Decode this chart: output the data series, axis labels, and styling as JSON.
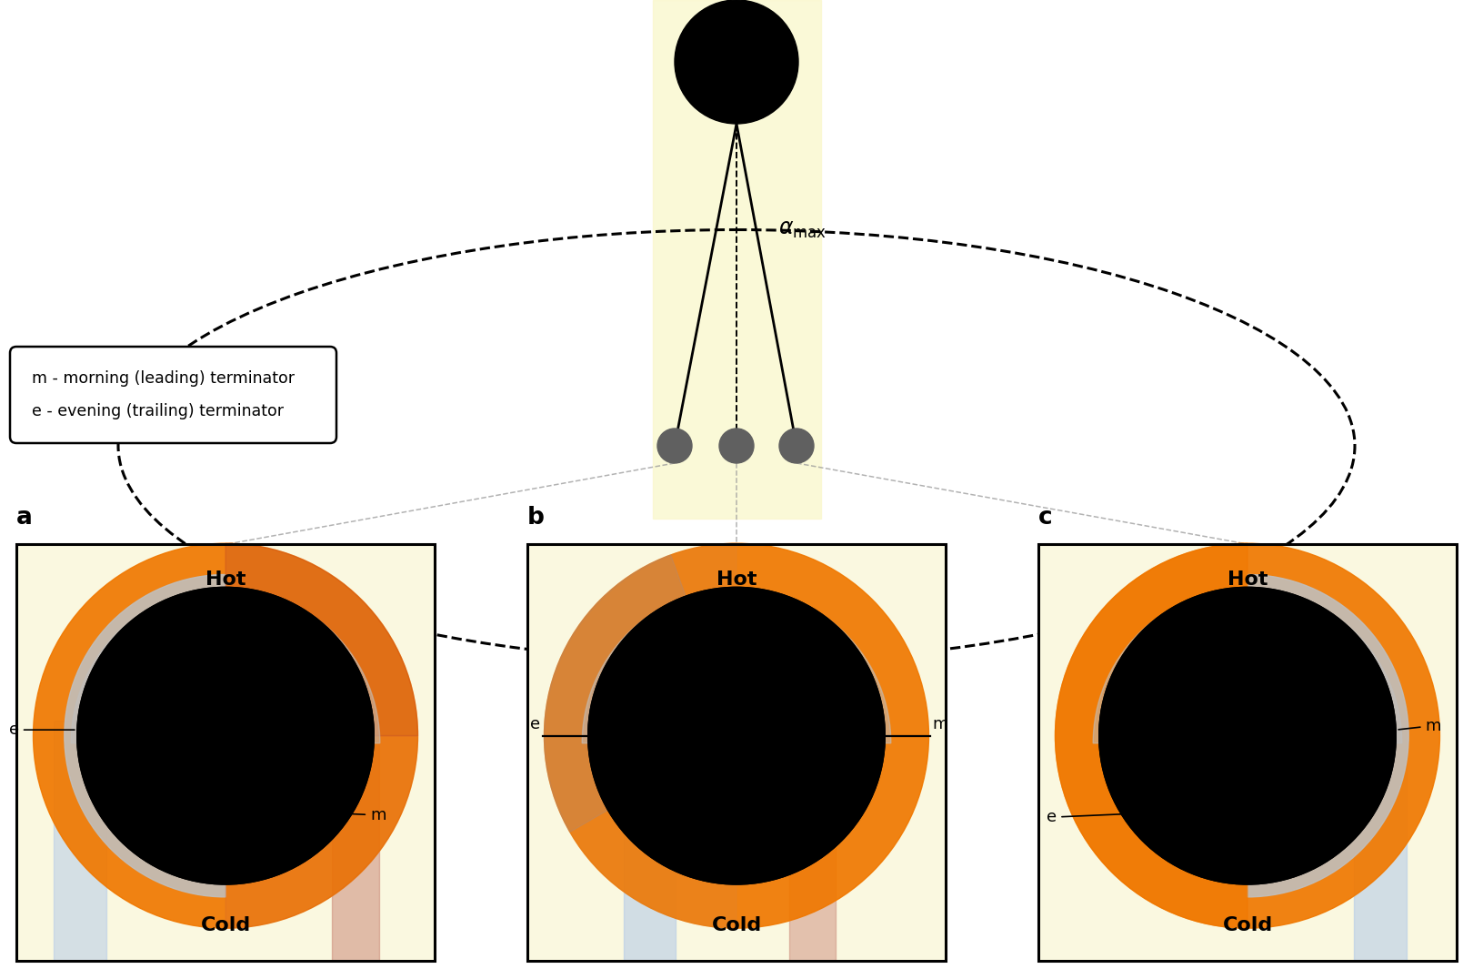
{
  "bg_color": "#ffffff",
  "panel_bg": "#faf8e0",
  "orange_color": "#f07800",
  "orange_mid": "#e09040",
  "gray_limb": "#c0c0c0",
  "blue_cold": "#b0c8e8",
  "red_warm": "#c88070",
  "label_fontsize": 14,
  "small_fontsize": 12,
  "legend_text_1": "m - morning (leading) terminator",
  "legend_text_2": "e - evening (trailing) terminator",
  "hot_text": "Hot",
  "cold_text": "Cold",
  "panel_bg_yellow": "#faf8d0",
  "dashed_orbit_color": "#000000",
  "star_color": "#000000",
  "planet_dot_color": "#606060",
  "connector_color": "#999999"
}
